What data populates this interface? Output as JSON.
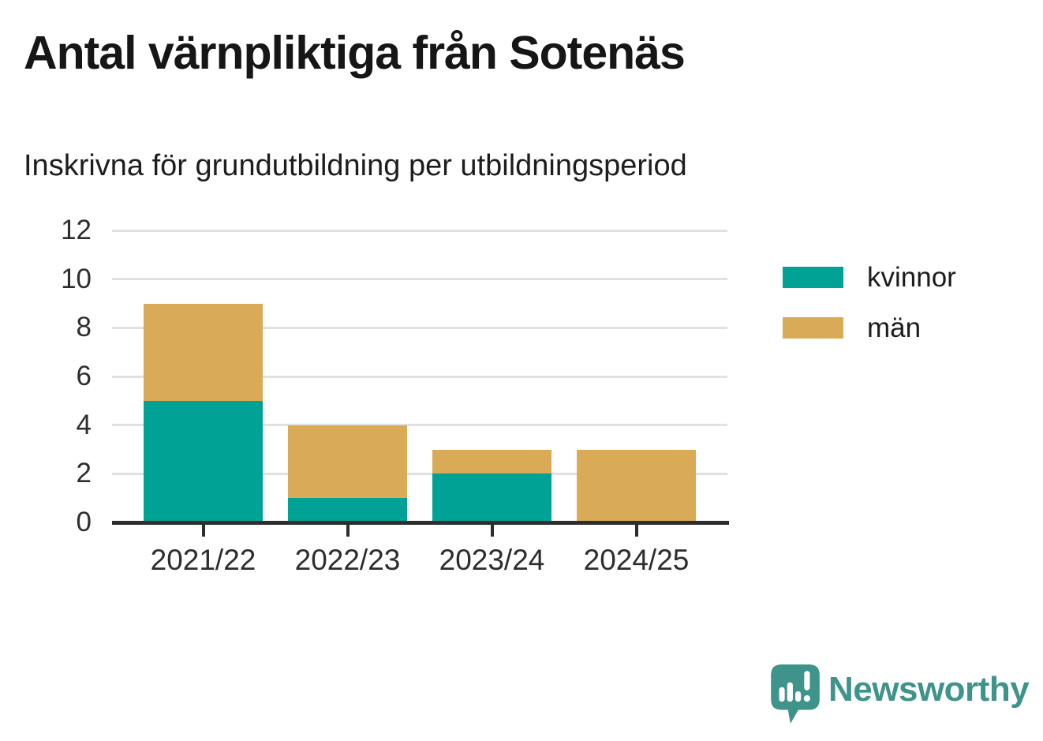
{
  "chart_data": {
    "type": "bar",
    "stacked": true,
    "title": "Antal värnpliktiga från Sotenäs",
    "subtitle": "Inskrivna för grundutbildning per utbildningsperiod",
    "categories": [
      "2021/22",
      "2022/23",
      "2023/24",
      "2024/25"
    ],
    "series": [
      {
        "name": "kvinnor",
        "color": "#00a296",
        "values": [
          5,
          1,
          2,
          0
        ]
      },
      {
        "name": "män",
        "color": "#d9ab57",
        "values": [
          4,
          3,
          1,
          3
        ]
      }
    ],
    "totals": [
      9,
      4,
      3,
      3
    ],
    "ylim": [
      0,
      12
    ],
    "yticks": [
      0,
      2,
      4,
      6,
      8,
      10,
      12
    ],
    "xlabel": "",
    "ylabel": "",
    "grid": true,
    "legend_position": "right",
    "grid_color": "#e1e1e1",
    "axis_color": "#2d2d2d"
  },
  "footer": {
    "brand": "Newsworthy",
    "brand_color": "#3e938b",
    "logo_icon": "speech-bubble-bar-chart-exclamation"
  }
}
